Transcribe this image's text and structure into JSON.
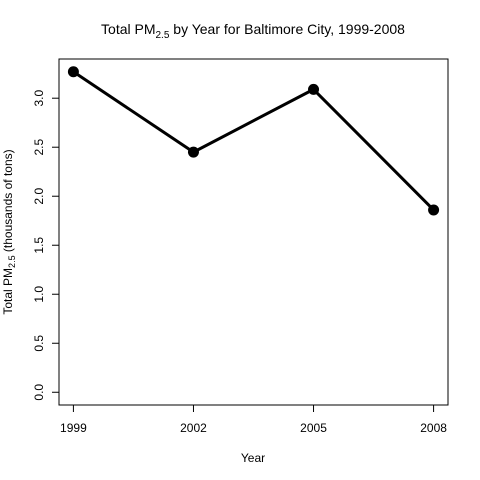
{
  "chart_data": {
    "type": "line",
    "title": {
      "prefix": "Total PM",
      "subscript": "2.5",
      "suffix": " by Year for Baltimore City, 1999-2008"
    },
    "xlabel": "Year",
    "ylabel": {
      "prefix": "Total PM",
      "subscript": "2.5",
      "suffix": " (thousands of tons)"
    },
    "x": [
      1999,
      2002,
      2005,
      2008
    ],
    "x_tick_labels": [
      "1999",
      "2002",
      "2005",
      "2008"
    ],
    "y": [
      3.27,
      2.45,
      3.09,
      1.86
    ],
    "y_ticks": [
      0.0,
      0.5,
      1.0,
      1.5,
      2.0,
      2.5,
      3.0
    ],
    "y_tick_labels": [
      "0.0",
      "0.5",
      "1.0",
      "1.5",
      "2.0",
      "2.5",
      "3.0"
    ],
    "ylim": [
      -0.13,
      3.4
    ],
    "xlim": [
      1998.64,
      2008.36
    ],
    "grid": false,
    "legend": "none",
    "line_color": "#000000",
    "marker": "filled-circle"
  }
}
